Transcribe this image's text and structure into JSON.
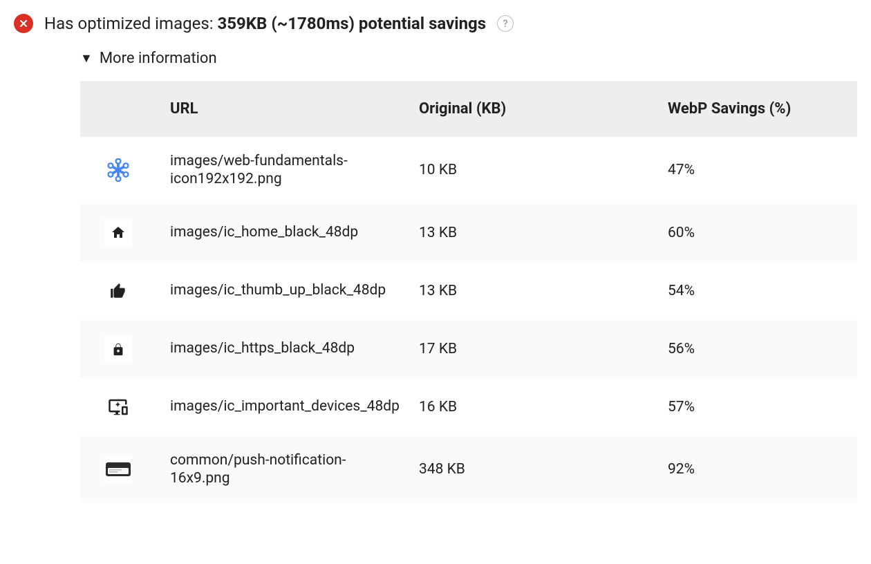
{
  "audit": {
    "status": "fail",
    "title_prefix": "Has optimized images: ",
    "title_bold": "359KB (~1780ms) potential savings",
    "help_glyph": "?"
  },
  "disclosure": {
    "label": "More information",
    "expanded": true
  },
  "table": {
    "columns": {
      "thumb": "",
      "url": "URL",
      "original": "Original (KB)",
      "savings": "WebP Savings (%)"
    },
    "rows": [
      {
        "icon": "asterisk",
        "url": "images/web-fundamentals-icon192x192.png",
        "url_wrap": true,
        "original": "10 KB",
        "savings": "47%"
      },
      {
        "icon": "home",
        "url": "images/ic_home_black_48dp",
        "url_wrap": false,
        "original": "13 KB",
        "savings": "60%"
      },
      {
        "icon": "thumb-up",
        "url": "images/ic_thumb_up_black_48dp",
        "url_wrap": false,
        "original": "13 KB",
        "savings": "54%"
      },
      {
        "icon": "lock",
        "url": "images/ic_https_black_48dp",
        "url_wrap": false,
        "original": "17 KB",
        "savings": "56%"
      },
      {
        "icon": "devices",
        "url": "images/ic_important_devices_48dp",
        "url_wrap": false,
        "original": "16 KB",
        "savings": "57%"
      },
      {
        "icon": "push-notif",
        "url": "common/push-notification-16x9.png",
        "url_wrap": true,
        "original": "348 KB",
        "savings": "92%"
      }
    ]
  },
  "colors": {
    "error": "#d93025",
    "asterisk": "#4285f4",
    "icon_black": "#212121",
    "header_bg": "#eeeeee",
    "row_alt_bg": "#fafafa"
  }
}
